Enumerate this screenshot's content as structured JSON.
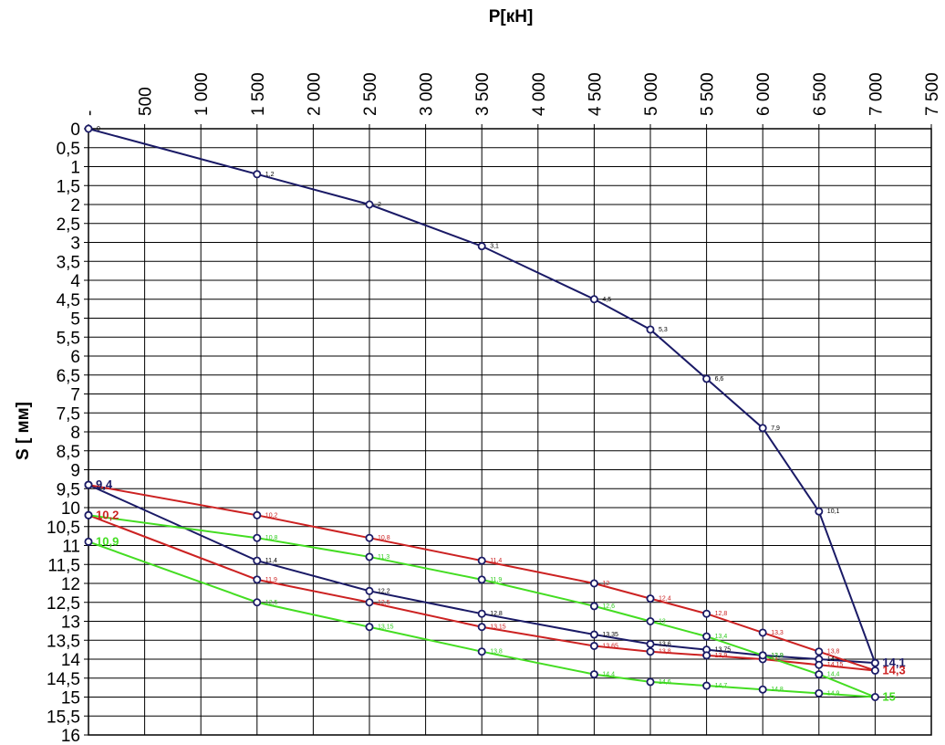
{
  "chart_data": {
    "type": "line",
    "xlabel": "P[кН]",
    "ylabel": "S [ мм]",
    "xlim": [
      0,
      7500
    ],
    "ylim": [
      0,
      16
    ],
    "x_axis_position": "top",
    "y_axis_inverted": true,
    "grid": true,
    "x_ticks": [
      {
        "v": 0,
        "label": "-"
      },
      {
        "v": 500,
        "label": "500"
      },
      {
        "v": 1000,
        "label": "1 000"
      },
      {
        "v": 1500,
        "label": "1 500"
      },
      {
        "v": 2000,
        "label": "2 000"
      },
      {
        "v": 2500,
        "label": "2 500"
      },
      {
        "v": 3000,
        "label": "3 000"
      },
      {
        "v": 3500,
        "label": "3 500"
      },
      {
        "v": 4000,
        "label": "4 000"
      },
      {
        "v": 4500,
        "label": "4 500"
      },
      {
        "v": 5000,
        "label": "5 000"
      },
      {
        "v": 5500,
        "label": "5 500"
      },
      {
        "v": 6000,
        "label": "6 000"
      },
      {
        "v": 6500,
        "label": "6 500"
      },
      {
        "v": 7000,
        "label": "7 000"
      },
      {
        "v": 7500,
        "label": "7 500"
      }
    ],
    "y_ticks": [
      {
        "v": 0,
        "label": "0"
      },
      {
        "v": 0.5,
        "label": "0,5"
      },
      {
        "v": 1,
        "label": "1"
      },
      {
        "v": 1.5,
        "label": "1,5"
      },
      {
        "v": 2,
        "label": "2"
      },
      {
        "v": 2.5,
        "label": "2,5"
      },
      {
        "v": 3,
        "label": "3"
      },
      {
        "v": 3.5,
        "label": "3,5"
      },
      {
        "v": 4,
        "label": "4"
      },
      {
        "v": 4.5,
        "label": "4,5"
      },
      {
        "v": 5,
        "label": "5"
      },
      {
        "v": 5.5,
        "label": "5,5"
      },
      {
        "v": 6,
        "label": "6"
      },
      {
        "v": 6.5,
        "label": "6,5"
      },
      {
        "v": 7,
        "label": "7"
      },
      {
        "v": 7.5,
        "label": "7,5"
      },
      {
        "v": 8,
        "label": "8"
      },
      {
        "v": 8.5,
        "label": "8,5"
      },
      {
        "v": 9,
        "label": "9"
      },
      {
        "v": 9.5,
        "label": "9,5"
      },
      {
        "v": 10,
        "label": "10"
      },
      {
        "v": 10.5,
        "label": "10,5"
      },
      {
        "v": 11,
        "label": "11"
      },
      {
        "v": 11.5,
        "label": "11,5"
      },
      {
        "v": 12,
        "label": "12"
      },
      {
        "v": 12.5,
        "label": "12,5"
      },
      {
        "v": 13,
        "label": "13"
      },
      {
        "v": 13.5,
        "label": "13,5"
      },
      {
        "v": 14,
        "label": "14"
      },
      {
        "v": 14.5,
        "label": "14,5"
      },
      {
        "v": 15,
        "label": "15"
      },
      {
        "v": 15.5,
        "label": "15,5"
      },
      {
        "v": 16,
        "label": "16"
      }
    ],
    "series": [
      {
        "color": "#1a1a66",
        "label_color": "#000000",
        "points": [
          {
            "x": 0,
            "y": 0,
            "label": "0"
          },
          {
            "x": 1500,
            "y": 1.2,
            "label": "1,2"
          },
          {
            "x": 2500,
            "y": 2,
            "label": "2"
          },
          {
            "x": 3500,
            "y": 3.1,
            "label": "3,1"
          },
          {
            "x": 4500,
            "y": 4.5,
            "label": "4,5"
          },
          {
            "x": 5000,
            "y": 5.3,
            "label": "5,3"
          },
          {
            "x": 5500,
            "y": 6.6,
            "label": "6,6"
          },
          {
            "x": 6000,
            "y": 7.9,
            "label": "7,9"
          },
          {
            "x": 6500,
            "y": 10.1,
            "label": "10,1"
          },
          {
            "x": 7000,
            "y": 14.1,
            "label": "14,1",
            "big": true
          },
          {
            "x": 6500,
            "y": 14,
            "label": "14"
          },
          {
            "x": 6000,
            "y": 13.9,
            "label": "13,9"
          },
          {
            "x": 5500,
            "y": 13.75,
            "label": "13,75"
          },
          {
            "x": 5000,
            "y": 13.6,
            "label": "13,6"
          },
          {
            "x": 4500,
            "y": 13.35,
            "label": "13,35"
          },
          {
            "x": 3500,
            "y": 12.8,
            "label": "12,8"
          },
          {
            "x": 2500,
            "y": 12.2,
            "label": "12,2"
          },
          {
            "x": 1500,
            "y": 11.4,
            "label": "11,4"
          },
          {
            "x": 0,
            "y": 9.4,
            "label": "9,4",
            "big": true
          }
        ]
      },
      {
        "color": "#cc2222",
        "label_color": "#cc2222",
        "points": [
          {
            "x": 0,
            "y": 9.4,
            "label": ""
          },
          {
            "x": 1500,
            "y": 10.2,
            "label": "10,2"
          },
          {
            "x": 2500,
            "y": 10.8,
            "label": "10,8"
          },
          {
            "x": 3500,
            "y": 11.4,
            "label": "11,4"
          },
          {
            "x": 4500,
            "y": 12,
            "label": "12"
          },
          {
            "x": 5000,
            "y": 12.4,
            "label": "12,4"
          },
          {
            "x": 5500,
            "y": 12.8,
            "label": "12,8"
          },
          {
            "x": 6000,
            "y": 13.3,
            "label": "13,3"
          },
          {
            "x": 6500,
            "y": 13.8,
            "label": "13,8"
          },
          {
            "x": 7000,
            "y": 14.3,
            "label": "14,3",
            "big": true
          },
          {
            "x": 6500,
            "y": 14.15,
            "label": "14,15"
          },
          {
            "x": 6000,
            "y": 14,
            "label": "14"
          },
          {
            "x": 5500,
            "y": 13.9,
            "label": "13,9"
          },
          {
            "x": 5000,
            "y": 13.8,
            "label": "13,8"
          },
          {
            "x": 4500,
            "y": 13.65,
            "label": "13,65"
          },
          {
            "x": 3500,
            "y": 13.15,
            "label": "13,15"
          },
          {
            "x": 2500,
            "y": 12.5,
            "label": "12,5"
          },
          {
            "x": 1500,
            "y": 11.9,
            "label": "11,9"
          },
          {
            "x": 0,
            "y": 10.2,
            "label": "10,2",
            "big": true
          }
        ]
      },
      {
        "color": "#44dd22",
        "label_color": "#33cc22",
        "points": [
          {
            "x": 0,
            "y": 10.2,
            "label": ""
          },
          {
            "x": 1500,
            "y": 10.8,
            "label": "10,8"
          },
          {
            "x": 2500,
            "y": 11.3,
            "label": "11,3"
          },
          {
            "x": 3500,
            "y": 11.9,
            "label": "11,9"
          },
          {
            "x": 4500,
            "y": 12.6,
            "label": "12,6"
          },
          {
            "x": 5000,
            "y": 13,
            "label": "13"
          },
          {
            "x": 5500,
            "y": 13.4,
            "label": "13,4"
          },
          {
            "x": 6000,
            "y": 13.9,
            "label": "13,9"
          },
          {
            "x": 6500,
            "y": 14.4,
            "label": "14,4"
          },
          {
            "x": 7000,
            "y": 15,
            "label": "15",
            "big": true
          },
          {
            "x": 6500,
            "y": 14.9,
            "label": "14,9"
          },
          {
            "x": 6000,
            "y": 14.8,
            "label": "14,8"
          },
          {
            "x": 5500,
            "y": 14.7,
            "label": "14,7"
          },
          {
            "x": 5000,
            "y": 14.6,
            "label": "14,6"
          },
          {
            "x": 4500,
            "y": 14.4,
            "label": "14,4"
          },
          {
            "x": 3500,
            "y": 13.8,
            "label": "13,8"
          },
          {
            "x": 2500,
            "y": 13.15,
            "label": "13,15"
          },
          {
            "x": 1500,
            "y": 12.5,
            "label": "12,5"
          },
          {
            "x": 0,
            "y": 10.9,
            "label": "10,9",
            "big": true
          }
        ]
      }
    ]
  }
}
